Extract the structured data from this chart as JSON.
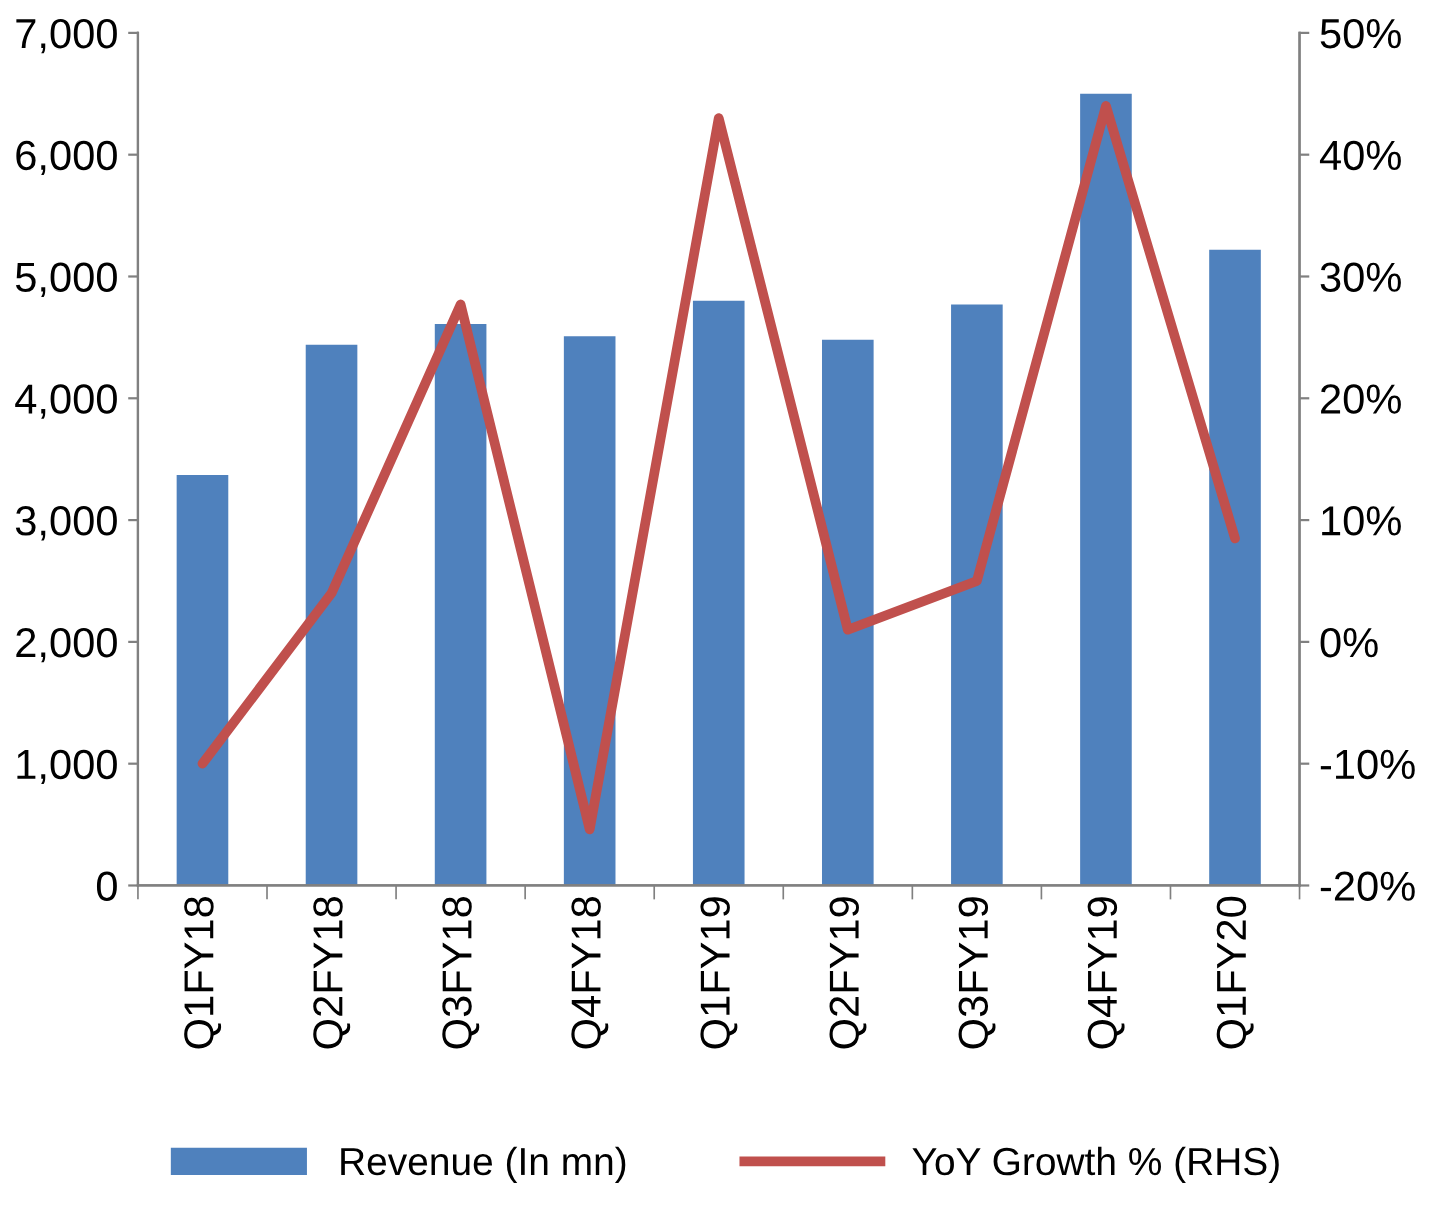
{
  "chart_data": {
    "type": "bar",
    "categories": [
      "Q1FY18",
      "Q2FY18",
      "Q3FY18",
      "Q4FY18",
      "Q1FY19",
      "Q2FY19",
      "Q3FY19",
      "Q4FY19",
      "Q1FY20"
    ],
    "series": [
      {
        "name": "Revenue (In mn)",
        "color": "#4f81bd",
        "values": [
          3370,
          4440,
          4610,
          4510,
          4800,
          4480,
          4770,
          6500,
          5220
        ]
      },
      {
        "name": "YoY Growth % (RHS)",
        "type": "line",
        "axis": "y2",
        "color": "#c0504d",
        "values": [
          -10,
          4,
          27.7,
          -15.4,
          43,
          1,
          5,
          44,
          8.5
        ]
      }
    ],
    "ylim": [
      0,
      7000
    ],
    "yticks": [
      0,
      {
        "value": 1000,
        "label": "1,000"
      },
      {
        "value": 2000,
        "label": "2,000"
      },
      {
        "value": 3000,
        "label": "3,000"
      },
      {
        "value": 4000,
        "label": "4,000"
      },
      {
        "value": 5000,
        "label": "5,000"
      },
      {
        "value": 6000,
        "label": "6,000"
      },
      {
        "value": 7000,
        "label": "7,000"
      }
    ],
    "y2lim": [
      -20,
      50
    ],
    "y2ticks": [
      {
        "value": -20,
        "label": "-20%"
      },
      {
        "value": -10,
        "label": "-10%"
      },
      {
        "value": 0,
        "label": "0%"
      },
      {
        "value": 10,
        "label": "10%"
      },
      {
        "value": 20,
        "label": "20%"
      },
      {
        "value": 30,
        "label": "30%"
      },
      {
        "value": 40,
        "label": "40%"
      },
      {
        "value": 50,
        "label": "50%"
      }
    ],
    "grid": false,
    "legend": "bottom",
    "line_style": "solid"
  }
}
